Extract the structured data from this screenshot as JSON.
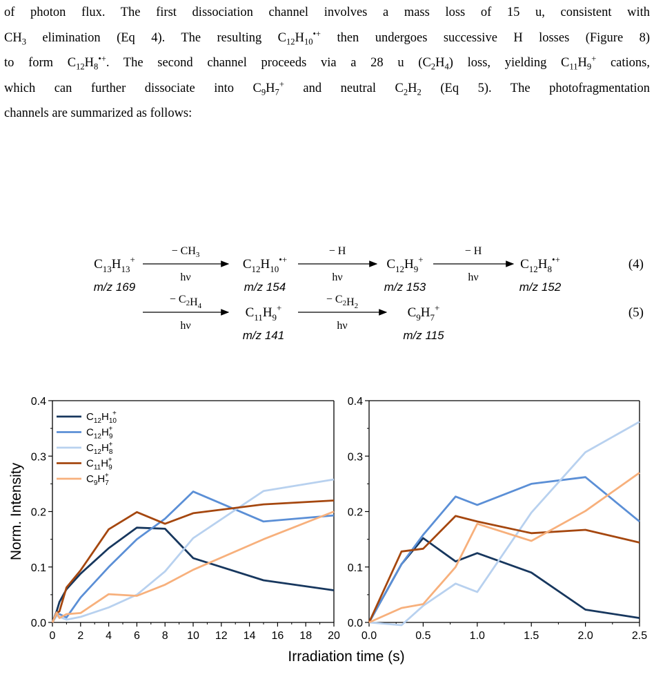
{
  "paragraph": {
    "lines": [
      "of photon flux. The first dissociation channel involves a mass loss of 15 u, consistent with",
      "CH₃ elimination (Eq 4). The resulting C₁₂H₁₀•⁺ then undergoes successive H losses (Figure 8)",
      "to form C₁₂H₈•⁺. The second channel proceeds via a 28 u (C₂H₄) loss, yielding C₁₁H₉⁺ cations,",
      "which can further dissociate into C₉H₇⁺ and neutral C₂H₂ (Eq 5). The photofragmentation",
      "channels are summarized as follows:"
    ]
  },
  "equations": {
    "eq4": {
      "number": "(4)",
      "species": [
        {
          "formula": "C13H13+",
          "mz": "m/z 169"
        },
        {
          "formula": "C12H10•+",
          "mz": "m/z 154"
        },
        {
          "formula": "C12H9+",
          "mz": "m/z 153"
        },
        {
          "formula": "C12H8•+",
          "mz": "m/z 152"
        }
      ],
      "arrows": [
        {
          "top": "− CH3",
          "bottom": "hν"
        },
        {
          "top": "− H",
          "bottom": "hν"
        },
        {
          "top": "− H",
          "bottom": "hν"
        }
      ]
    },
    "eq5": {
      "number": "(5)",
      "species": [
        {
          "formula": "C11H9+",
          "mz": "m/z 141"
        },
        {
          "formula": "C9H7+",
          "mz": "m/z 115"
        }
      ],
      "arrows": [
        {
          "top": "− C2H4",
          "bottom": "hν"
        },
        {
          "top": "− C2H2",
          "bottom": "hν"
        }
      ]
    }
  },
  "figure": {
    "ylabel": "Norm. Intensity",
    "xlabel": "Irradiation time (s)",
    "colors": {
      "C12H10": "#17375e",
      "C12H9": "#5b8fd6",
      "C12H8": "#b8d1ef",
      "C11H9": "#a5470f",
      "C9H7": "#f7b07c"
    }
  },
  "chart_data": [
    {
      "type": "line",
      "title": "",
      "xlabel": "Irradiation time (s)",
      "ylabel": "Norm. Intensity",
      "xlim": [
        0,
        20
      ],
      "ylim": [
        0,
        0.4
      ],
      "xticks": [
        0,
        2,
        4,
        6,
        8,
        10,
        12,
        14,
        16,
        18,
        20
      ],
      "yticks": [
        0.0,
        0.1,
        0.2,
        0.3,
        0.4
      ],
      "legend": "top-left",
      "grid": false,
      "series": [
        {
          "name": "C12H10+",
          "x": [
            0,
            0.3,
            0.5,
            1,
            2,
            4,
            6,
            8,
            10,
            15,
            20
          ],
          "y": [
            0.0,
            0.02,
            0.037,
            0.06,
            0.088,
            0.134,
            0.171,
            0.169,
            0.116,
            0.076,
            0.058
          ]
        },
        {
          "name": "C12H9+",
          "x": [
            0,
            0.3,
            0.5,
            1,
            2,
            4,
            6,
            8,
            10,
            15,
            20
          ],
          "y": [
            0.0,
            0.015,
            0.015,
            0.009,
            0.045,
            0.1,
            0.15,
            0.187,
            0.236,
            0.182,
            0.193
          ]
        },
        {
          "name": "C12H8+",
          "x": [
            0,
            0.3,
            0.5,
            1,
            2,
            4,
            6,
            8,
            10,
            15,
            20
          ],
          "y": [
            0.0,
            0.012,
            0.01,
            0.005,
            0.01,
            0.027,
            0.05,
            0.092,
            0.152,
            0.237,
            0.258
          ]
        },
        {
          "name": "C11H9+",
          "x": [
            0,
            0.3,
            0.5,
            1,
            2,
            4,
            6,
            8,
            10,
            15,
            20
          ],
          "y": [
            0.0,
            0.017,
            0.02,
            0.063,
            0.094,
            0.168,
            0.199,
            0.178,
            0.197,
            0.213,
            0.22
          ]
        },
        {
          "name": "C9H7+",
          "x": [
            0,
            0.3,
            0.5,
            1,
            2,
            4,
            6,
            8,
            10,
            15,
            20
          ],
          "y": [
            0.0,
            0.018,
            0.008,
            0.015,
            0.017,
            0.051,
            0.048,
            0.068,
            0.095,
            0.15,
            0.2
          ]
        }
      ]
    },
    {
      "type": "line",
      "title": "",
      "xlabel": "Irradiation time (s)",
      "ylabel": "",
      "xlim": [
        0,
        2.5
      ],
      "ylim": [
        0,
        0.4
      ],
      "xticks": [
        0.0,
        0.5,
        1.0,
        1.5,
        2.0,
        2.5
      ],
      "yticks": [
        0.0,
        0.1,
        0.2,
        0.3,
        0.4
      ],
      "legend": "none",
      "grid": false,
      "series": [
        {
          "name": "C12H10+",
          "x": [
            0,
            0.3,
            0.5,
            0.8,
            1.0,
            1.5,
            2.0,
            2.5
          ],
          "y": [
            0.0,
            0.105,
            0.152,
            0.11,
            0.125,
            0.09,
            0.023,
            0.008
          ]
        },
        {
          "name": "C12H9+",
          "x": [
            0,
            0.3,
            0.5,
            0.8,
            1.0,
            1.5,
            2.0,
            2.5
          ],
          "y": [
            0.0,
            0.105,
            0.158,
            0.227,
            0.212,
            0.25,
            0.262,
            0.182
          ]
        },
        {
          "name": "C12H8+",
          "x": [
            0,
            0.3,
            0.5,
            0.8,
            1.0,
            1.5,
            2.0,
            2.5
          ],
          "y": [
            0.0,
            -0.005,
            0.03,
            0.07,
            0.055,
            0.198,
            0.307,
            0.362
          ]
        },
        {
          "name": "C11H9+",
          "x": [
            0,
            0.3,
            0.5,
            0.8,
            1.0,
            1.5,
            2.0,
            2.5
          ],
          "y": [
            0.0,
            0.128,
            0.133,
            0.192,
            0.182,
            0.161,
            0.167,
            0.144
          ]
        },
        {
          "name": "C9H7+",
          "x": [
            0,
            0.3,
            0.5,
            0.8,
            1.0,
            1.5,
            2.0,
            2.5
          ],
          "y": [
            0.0,
            0.026,
            0.033,
            0.1,
            0.178,
            0.147,
            0.201,
            0.27
          ]
        }
      ]
    }
  ]
}
